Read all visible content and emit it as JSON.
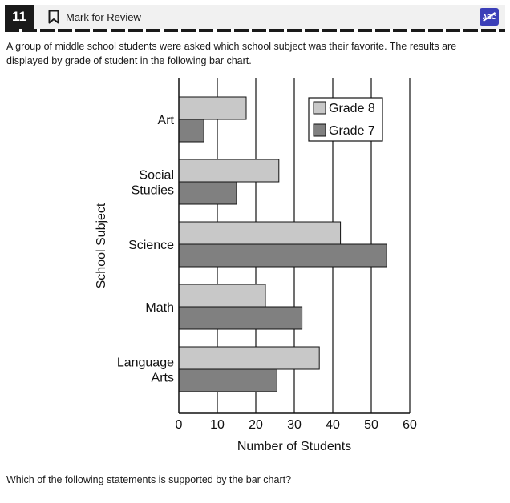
{
  "header": {
    "question_number": "11",
    "mark_for_review_label": "Mark for Review",
    "bookmark_icon": "bookmark-icon",
    "abc_icon": "abc-eliminator-icon",
    "abc_label": "ABC"
  },
  "prompt_text": "A group of middle school students were asked which school subject was their favorite. The results are displayed by grade of student in the following bar chart.",
  "question_text": "Which of the following statements is supported by the bar chart?",
  "colors": {
    "grade8": "#c8c8c8",
    "grade7": "#808080",
    "accent": "#3b3fb8"
  },
  "chart_data": {
    "type": "bar",
    "orientation": "horizontal",
    "categories": [
      "Art",
      "Social Studies",
      "Science",
      "Math",
      "Language Arts"
    ],
    "category_labels": [
      [
        "Art"
      ],
      [
        "Social",
        "Studies"
      ],
      [
        "Science"
      ],
      [
        "Math"
      ],
      [
        "Language",
        "Arts"
      ]
    ],
    "series": [
      {
        "name": "Grade 8",
        "values": [
          17.5,
          26,
          42,
          22.5,
          36.5
        ]
      },
      {
        "name": "Grade 7",
        "values": [
          6.5,
          15,
          54,
          32,
          25.5
        ]
      }
    ],
    "xlabel": "Number of Students",
    "ylabel": "School Subject",
    "xlim": [
      0,
      60
    ],
    "xticks": [
      "0",
      "10",
      "20",
      "30",
      "40",
      "50",
      "60"
    ],
    "grid": true,
    "legend_position": "top-right"
  }
}
